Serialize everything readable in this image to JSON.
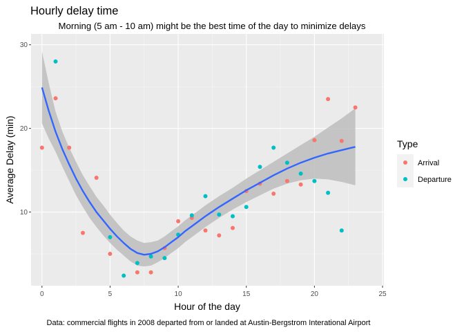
{
  "chart_data": {
    "type": "scatter",
    "title": "Hourly delay time",
    "subtitle": "Morning (5 am - 10 am) might be the best time of the day to minimize delays",
    "caption": "Data: commercial flights in 2008 departed from or landed at Austin-Bergstrom Interational Airport",
    "xlabel": "Hour of the day",
    "ylabel": "Average Delay (min)",
    "xlim": [
      -0.8,
      25.1
    ],
    "ylim": [
      1.2,
      31.3
    ],
    "xticks": [
      0,
      5,
      10,
      15,
      20,
      25
    ],
    "yticks": [
      10,
      20,
      30
    ],
    "grid": true,
    "legend": {
      "title": "Type",
      "placement": "right",
      "entries": [
        "Arrival",
        "Departure"
      ]
    },
    "series": [
      {
        "name": "Arrival",
        "color": "#F8766D",
        "points": [
          [
            0,
            17.7
          ],
          [
            1,
            23.6
          ],
          [
            2,
            17.7
          ],
          [
            3,
            7.5
          ],
          [
            4,
            14.1
          ],
          [
            5,
            5.0
          ],
          [
            7,
            2.8
          ],
          [
            8,
            2.8
          ],
          [
            9,
            5.7
          ],
          [
            10,
            8.9
          ],
          [
            11,
            9.3
          ],
          [
            12,
            7.8
          ],
          [
            13,
            7.2
          ],
          [
            14,
            8.1
          ],
          [
            15,
            12.5
          ],
          [
            16,
            13.4
          ],
          [
            17,
            12.2
          ],
          [
            18,
            13.7
          ],
          [
            19,
            13.3
          ],
          [
            20,
            18.6
          ],
          [
            21,
            23.5
          ],
          [
            22,
            18.5
          ],
          [
            23,
            22.5
          ]
        ]
      },
      {
        "name": "Departure",
        "color": "#00BFC4",
        "points": [
          [
            1,
            28.0
          ],
          [
            5,
            7.0
          ],
          [
            6,
            2.4
          ],
          [
            7,
            3.9
          ],
          [
            8,
            4.7
          ],
          [
            9,
            4.5
          ],
          [
            10,
            7.3
          ],
          [
            11,
            9.6
          ],
          [
            12,
            11.9
          ],
          [
            13,
            9.7
          ],
          [
            14,
            9.5
          ],
          [
            15,
            10.6
          ],
          [
            16,
            15.4
          ],
          [
            17,
            17.7
          ],
          [
            18,
            15.9
          ],
          [
            19,
            14.6
          ],
          [
            20,
            13.7
          ],
          [
            21,
            12.3
          ],
          [
            22,
            7.8
          ]
        ]
      }
    ],
    "smooth": {
      "color": "#3366FF",
      "band_color": "#bdbdbd",
      "points": [
        [
          0,
          24.9,
          20.6,
          29.2
        ],
        [
          0.5,
          22.1,
          18.8,
          25.4
        ],
        [
          1,
          19.6,
          17.2,
          22.0
        ],
        [
          1.5,
          17.5,
          15.4,
          19.6
        ],
        [
          2,
          15.7,
          13.7,
          17.7
        ],
        [
          2.5,
          14.0,
          12.0,
          16.0
        ],
        [
          3,
          12.5,
          10.6,
          14.4
        ],
        [
          3.5,
          11.2,
          9.3,
          13.1
        ],
        [
          4,
          10.0,
          8.2,
          11.8
        ],
        [
          4.5,
          9.0,
          7.2,
          10.8
        ],
        [
          5,
          8.0,
          6.3,
          9.7
        ],
        [
          5.5,
          7.1,
          5.5,
          8.7
        ],
        [
          6,
          6.3,
          4.8,
          7.8
        ],
        [
          6.5,
          5.6,
          4.1,
          7.1
        ],
        [
          7,
          5.1,
          3.6,
          6.6
        ],
        [
          7.5,
          4.9,
          3.5,
          6.3
        ],
        [
          8,
          5.0,
          3.6,
          6.4
        ],
        [
          8.5,
          5.3,
          4.0,
          6.6
        ],
        [
          9,
          5.8,
          4.5,
          7.1
        ],
        [
          9.5,
          6.4,
          5.1,
          7.7
        ],
        [
          10,
          7.0,
          5.7,
          8.3
        ],
        [
          10.5,
          7.7,
          6.4,
          9.0
        ],
        [
          11,
          8.3,
          7.0,
          9.6
        ],
        [
          11.5,
          8.9,
          7.6,
          10.2
        ],
        [
          12,
          9.5,
          8.2,
          10.8
        ],
        [
          13,
          10.6,
          9.3,
          11.9
        ],
        [
          14,
          11.6,
          10.3,
          12.9
        ],
        [
          15,
          12.6,
          11.2,
          14.0
        ],
        [
          16,
          13.5,
          12.0,
          15.0
        ],
        [
          17,
          14.4,
          12.8,
          16.0
        ],
        [
          18,
          15.2,
          13.4,
          17.0
        ],
        [
          19,
          15.9,
          13.8,
          18.0
        ],
        [
          20,
          16.5,
          14.0,
          19.0
        ],
        [
          21,
          17.0,
          13.9,
          20.1
        ],
        [
          22,
          17.4,
          13.6,
          21.2
        ],
        [
          23,
          17.8,
          13.2,
          22.4
        ]
      ]
    }
  }
}
